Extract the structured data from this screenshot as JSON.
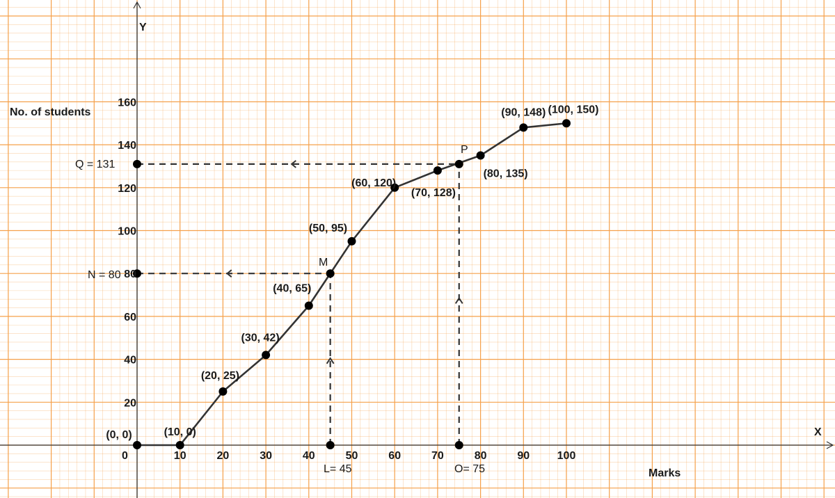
{
  "chart_data": {
    "type": "line",
    "title": "",
    "xlabel": "Marks",
    "ylabel": "No. of students",
    "x_axis_letter": "X",
    "y_axis_letter": "Y",
    "origin_label": "0",
    "xlim": [
      -20,
      160
    ],
    "ylim": [
      -24,
      206
    ],
    "grid": true,
    "grid_color": "#f5a04a",
    "line_color": "#333333",
    "x_ticks": [
      "10",
      "20",
      "30",
      "40",
      "50",
      "60",
      "70",
      "80",
      "90",
      "100"
    ],
    "x_tick_values": [
      10,
      20,
      30,
      40,
      50,
      60,
      70,
      80,
      90,
      100
    ],
    "y_ticks": [
      "20",
      "40",
      "60",
      "80",
      "100",
      "120",
      "140",
      "160"
    ],
    "y_tick_values": [
      20,
      40,
      60,
      80,
      100,
      120,
      140,
      160
    ],
    "series": [
      {
        "points": [
          {
            "x": 0,
            "y": 0,
            "label": "(0, 0)"
          },
          {
            "x": 10,
            "y": 0,
            "label": "(10, 0)"
          },
          {
            "x": 20,
            "y": 25,
            "label": "(20, 25)"
          },
          {
            "x": 30,
            "y": 42,
            "label": "(30, 42)"
          },
          {
            "x": 40,
            "y": 65,
            "label": "(40, 65)"
          },
          {
            "x": 50,
            "y": 95,
            "label": "(50, 95)"
          },
          {
            "x": 60,
            "y": 120,
            "label": "(60, 120)"
          },
          {
            "x": 70,
            "y": 128,
            "label": "(70, 128)"
          },
          {
            "x": 80,
            "y": 135,
            "label": "(80, 135)"
          },
          {
            "x": 90,
            "y": 148,
            "label": "(90, 148)"
          },
          {
            "x": 100,
            "y": 150,
            "label": "(100, 150)"
          }
        ]
      }
    ],
    "annotations": {
      "M": {
        "label": "M",
        "x": 45,
        "y": 80
      },
      "P": {
        "label": "P",
        "x": 75,
        "y": 131
      },
      "L": {
        "label": "L= 45",
        "x": 45,
        "y": 0
      },
      "O": {
        "label": "O= 75",
        "x": 75,
        "y": 0
      },
      "N": {
        "label": "N  = 80",
        "x": 0,
        "y": 80
      },
      "Q": {
        "label": "Q = 131",
        "x": 0,
        "y": 131
      }
    }
  }
}
